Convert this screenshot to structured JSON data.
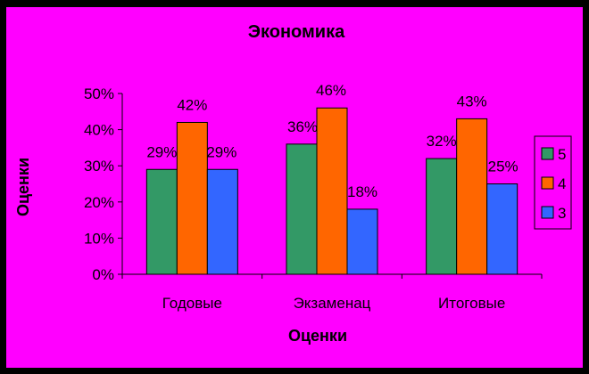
{
  "chart_data": {
    "type": "bar",
    "title": "Экономика",
    "xlabel": "Оценки",
    "ylabel": "Оценки",
    "categories": [
      "Годовые",
      "Экзаменац",
      "Итоговые"
    ],
    "series": [
      {
        "name": "5",
        "values": [
          29,
          36,
          32
        ],
        "color": "#339966"
      },
      {
        "name": "4",
        "values": [
          42,
          46,
          43
        ],
        "color": "#FF6600"
      },
      {
        "name": "3",
        "values": [
          29,
          18,
          25
        ],
        "color": "#3366FF"
      }
    ],
    "value_labels": [
      [
        "29%",
        "42%",
        "29%"
      ],
      [
        "36%",
        "46%",
        "18%"
      ],
      [
        "32%",
        "43%",
        "25%"
      ]
    ],
    "y_ticks": [
      "0%",
      "10%",
      "20%",
      "30%",
      "40%",
      "50%"
    ],
    "ylim": [
      0,
      50
    ],
    "legend_position": "right",
    "grid": false,
    "colors": {
      "background": "#FF00FF",
      "frame": "#000000"
    }
  }
}
